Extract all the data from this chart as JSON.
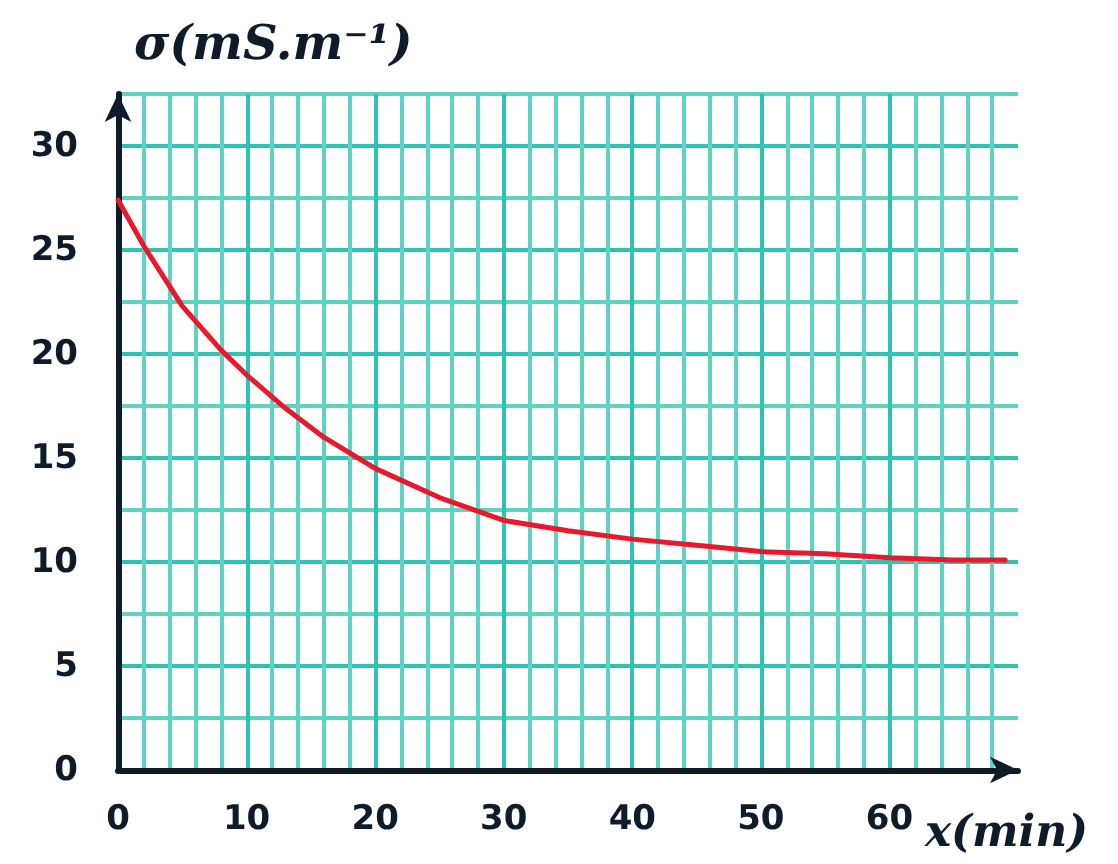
{
  "chart_data": {
    "type": "line",
    "xlabel": "x(min)",
    "ylabel": "σ(mS.m⁻¹)",
    "x": [
      0,
      2,
      5,
      8,
      10,
      13,
      16,
      20,
      25,
      30,
      35,
      40,
      45,
      50,
      55,
      60,
      65,
      69
    ],
    "series": [
      {
        "color": "#e8192c",
        "values": [
          27.4,
          25.2,
          22.3,
          20.2,
          19.0,
          17.4,
          16.0,
          14.5,
          13.1,
          12.0,
          11.5,
          11.1,
          10.8,
          10.5,
          10.4,
          10.2,
          10.1,
          10.1
        ]
      }
    ],
    "xlim": [
      0,
      70
    ],
    "ylim": [
      0,
      32.5
    ],
    "xticks": [
      0,
      {
        "value": 2,
        "label": null
      },
      {
        "value": 4,
        "label": null
      },
      {
        "value": 6,
        "label": null
      },
      {
        "value": 8,
        "label": null
      },
      10,
      {
        "value": 12,
        "label": null
      },
      {
        "value": 14,
        "label": null
      },
      {
        "value": 16,
        "label": null
      },
      {
        "value": 18,
        "label": null
      },
      20,
      {
        "value": 22,
        "label": null
      },
      {
        "value": 24,
        "label": null
      },
      {
        "value": 26,
        "label": null
      },
      {
        "value": 28,
        "label": null
      },
      30,
      {
        "value": 32,
        "label": null
      },
      {
        "value": 34,
        "label": null
      },
      {
        "value": 36,
        "label": null
      },
      {
        "value": 38,
        "label": null
      },
      40,
      {
        "value": 42,
        "label": null
      },
      {
        "value": 44,
        "label": null
      },
      {
        "value": 46,
        "label": null
      },
      {
        "value": 48,
        "label": null
      },
      50,
      {
        "value": 52,
        "label": null
      },
      {
        "value": 54,
        "label": null
      },
      {
        "value": 56,
        "label": null
      },
      {
        "value": 58,
        "label": null
      },
      60,
      {
        "value": 62,
        "label": null
      },
      {
        "value": 64,
        "label": null
      },
      {
        "value": 66,
        "label": null
      },
      {
        "value": 68,
        "label": null
      }
    ],
    "yticks": [
      0,
      {
        "value": 2.5,
        "label": null
      },
      5,
      {
        "value": 7.5,
        "label": null
      },
      10,
      {
        "value": 12.5,
        "label": null
      },
      15,
      {
        "value": 17.5,
        "label": null
      },
      20,
      {
        "value": 22.5,
        "label": null
      },
      25,
      {
        "value": 27.5,
        "label": null
      },
      30,
      {
        "value": 32.5,
        "label": null
      }
    ],
    "grid": true,
    "marker": "none",
    "line_style": "solid"
  }
}
